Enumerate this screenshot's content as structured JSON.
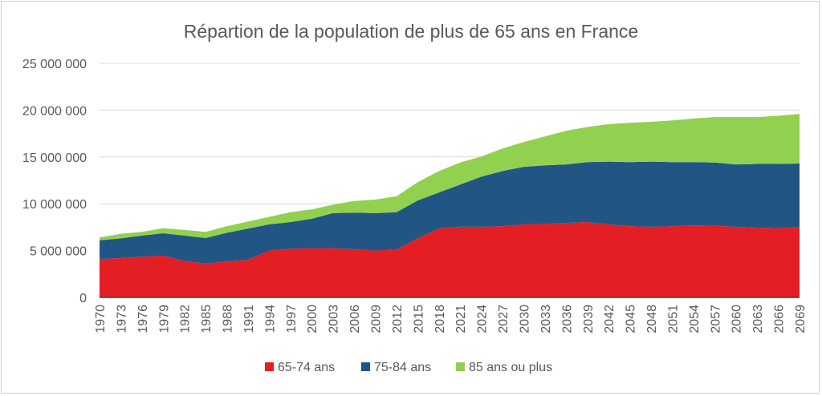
{
  "chart_data": {
    "type": "area",
    "stacked": true,
    "title": "Répartion de la population de plus de 65 ans en France",
    "xlabel": "",
    "ylabel": "",
    "ylim": [
      0,
      25000000
    ],
    "yticks": [
      "0",
      "5 000 000",
      "10 000 000",
      "15 000 000",
      "20 000 000",
      "25 000 000"
    ],
    "grid": true,
    "legend": "bottom",
    "x": [
      1970,
      1973,
      1976,
      1979,
      1982,
      1985,
      1988,
      1991,
      1994,
      1997,
      2000,
      2003,
      2006,
      2009,
      2012,
      2015,
      2018,
      2021,
      2024,
      2027,
      2030,
      2033,
      2036,
      2039,
      2042,
      2045,
      2048,
      2051,
      2054,
      2057,
      2060,
      2063,
      2066,
      2069
    ],
    "series": [
      {
        "name": "65-74 ans",
        "color": "#E41E25",
        "values": [
          4100000,
          4200000,
          4350000,
          4450000,
          3900000,
          3600000,
          3850000,
          4000000,
          5000000,
          5200000,
          5250000,
          5250000,
          5150000,
          5000000,
          5100000,
          6300000,
          7350000,
          7550000,
          7550000,
          7600000,
          7800000,
          7850000,
          7950000,
          8050000,
          7800000,
          7600000,
          7550000,
          7600000,
          7700000,
          7650000,
          7550000,
          7450000,
          7400000,
          7500000
        ]
      },
      {
        "name": "75-84 ans",
        "color": "#215684",
        "values": [
          2000000,
          2100000,
          2250000,
          2400000,
          2700000,
          2750000,
          3050000,
          3350000,
          2800000,
          2850000,
          3150000,
          3750000,
          3900000,
          4000000,
          4000000,
          4050000,
          3850000,
          4500000,
          5350000,
          5900000,
          6150000,
          6250000,
          6250000,
          6400000,
          6700000,
          6850000,
          6950000,
          6850000,
          6750000,
          6750000,
          6650000,
          6800000,
          6850000,
          6800000
        ]
      },
      {
        "name": "85 ans ou plus",
        "color": "#92D050",
        "values": [
          300000,
          500000,
          400000,
          550000,
          600000,
          650000,
          700000,
          750000,
          800000,
          1050000,
          1000000,
          900000,
          1250000,
          1450000,
          1700000,
          1950000,
          2300000,
          2350000,
          2150000,
          2400000,
          2650000,
          3100000,
          3600000,
          3750000,
          4000000,
          4200000,
          4250000,
          4450000,
          4650000,
          4850000,
          5050000,
          5000000,
          5150000,
          5300000
        ]
      }
    ]
  }
}
